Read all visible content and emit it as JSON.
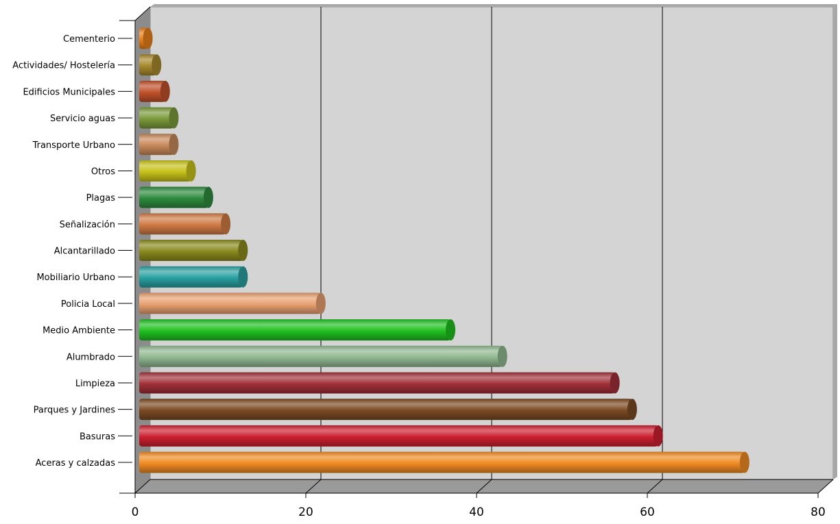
{
  "chart_data": {
    "type": "bar",
    "orientation": "horizontal",
    "style": "3d-cylinder",
    "title": "",
    "xlabel": "",
    "ylabel": "",
    "xlim": [
      0,
      80
    ],
    "x_ticks": [
      "0",
      "20",
      "40",
      "60",
      "80"
    ],
    "grid": true,
    "legend": "none",
    "categories": [
      "Cementerio",
      "Actividades/ Hostelería",
      "Edificios Municipales",
      "Servicio aguas",
      "Transporte Urbano",
      "Otros",
      "Plagas",
      "Señalización",
      "Alcantarillado",
      "Mobiliario Urbano",
      "Policia Local",
      "Medio Ambiente",
      "Alumbrado",
      "Limpieza",
      "Parques y Jardines",
      "Basuras",
      "Aceras y calzadas"
    ],
    "values": [
      1,
      2,
      3,
      4,
      4,
      6,
      8,
      10,
      12,
      12,
      21,
      36,
      42,
      55,
      57,
      60,
      70
    ],
    "colors": [
      "#e8801a",
      "#a8892e",
      "#c0502a",
      "#7a9a3a",
      "#c8895a",
      "#c6c21a",
      "#2e8a3e",
      "#d07a45",
      "#8a8a1e",
      "#2aa0a0",
      "#e8a070",
      "#20c020",
      "#90b890",
      "#a03038",
      "#7a4a22",
      "#cc2030",
      "#f08a22"
    ]
  }
}
